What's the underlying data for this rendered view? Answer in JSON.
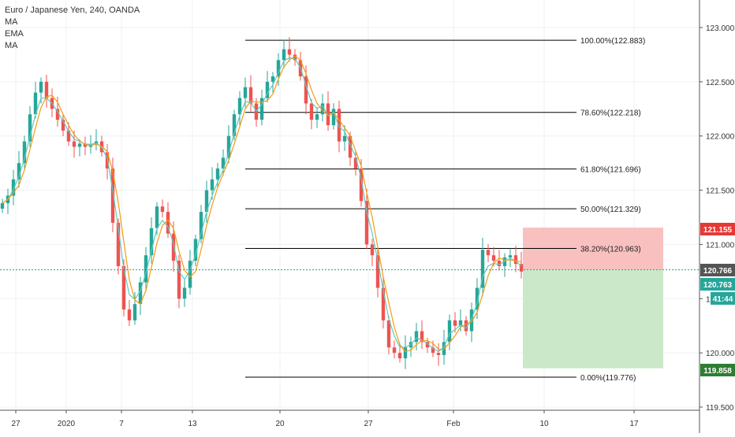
{
  "header": {
    "title": "Euro / Japanese Yen, 240, OANDA",
    "indicators": [
      "MA",
      "EMA",
      "MA"
    ]
  },
  "colors": {
    "up": "#26a69a",
    "down": "#ef5350",
    "ma_orange": "#f39c12",
    "ma_teal": "#5fc9c0",
    "fib_line": "#000000",
    "stop_zone": "#f8b9b9",
    "target_zone": "#c8e8c6",
    "grid": "#eef0f3",
    "axis_text": "#333333"
  },
  "chart_data": {
    "type": "candlestick",
    "symbol": "Euro / Japanese Yen",
    "interval": "240",
    "source": "OANDA",
    "y_axis": {
      "ylim": [
        119.45,
        123.2
      ],
      "ticks": [
        "119.500",
        "120.000",
        "120.500",
        "121.000",
        "121.500",
        "122.000",
        "122.500",
        "123.000"
      ]
    },
    "x_axis": {
      "tick_labels": [
        "27",
        "2020",
        "7",
        "13",
        "20",
        "27",
        "Feb",
        "10",
        "17"
      ]
    },
    "grid": true,
    "candle_closes": [
      121.38,
      121.45,
      121.6,
      121.75,
      121.95,
      122.2,
      122.4,
      122.5,
      122.35,
      122.25,
      122.15,
      122.05,
      121.95,
      121.9,
      121.93,
      121.9,
      121.92,
      121.95,
      121.85,
      121.7,
      121.2,
      120.8,
      120.4,
      120.3,
      120.45,
      120.65,
      120.9,
      121.15,
      121.35,
      121.3,
      121.1,
      120.85,
      120.5,
      120.6,
      120.85,
      121.05,
      121.3,
      121.5,
      121.6,
      121.7,
      121.8,
      122.0,
      122.2,
      122.35,
      122.45,
      122.3,
      122.15,
      122.35,
      122.5,
      122.55,
      122.7,
      122.8,
      122.75,
      122.7,
      122.55,
      122.3,
      122.15,
      122.2,
      122.3,
      122.1,
      122.25,
      121.95,
      122.0,
      121.8,
      121.7,
      121.4,
      121.0,
      120.9,
      120.6,
      120.3,
      120.05,
      120.0,
      119.95,
      120.05,
      120.1,
      120.2,
      120.1,
      120.05,
      120.0,
      119.98,
      120.1,
      120.3,
      120.25,
      120.3,
      120.2,
      120.4,
      120.6,
      120.95,
      120.9,
      120.85,
      120.8,
      120.88,
      120.9,
      120.82,
      120.75
    ],
    "moving_averages": [
      {
        "name": "MA",
        "color": "orange"
      },
      {
        "name": "EMA",
        "color": "teal"
      },
      {
        "name": "MA",
        "color": "orange"
      }
    ],
    "fibonacci": {
      "levels": [
        {
          "label": "100.00%(122.883)",
          "value": 122.883
        },
        {
          "label": "78.60%(122.218)",
          "value": 122.218
        },
        {
          "label": "61.80%(121.696)",
          "value": 121.696
        },
        {
          "label": "50.00%(121.329)",
          "value": 121.329
        },
        {
          "label": "38.20%(120.963)",
          "value": 120.963
        },
        {
          "label": "0.00%(119.776)",
          "value": 119.776
        }
      ]
    },
    "position": {
      "stop": 121.155,
      "entry": 120.766,
      "target": 119.858
    },
    "price_labels": [
      {
        "text": "121.155",
        "value": 121.155,
        "kind": "stop"
      },
      {
        "text": "120.766",
        "value": 120.766,
        "kind": "entry"
      },
      {
        "text": "120.763",
        "value": 120.763,
        "kind": "last"
      },
      {
        "text": "41:44",
        "value": 120.65,
        "kind": "countdown"
      },
      {
        "text": "119.858",
        "value": 119.858,
        "kind": "target"
      }
    ]
  }
}
